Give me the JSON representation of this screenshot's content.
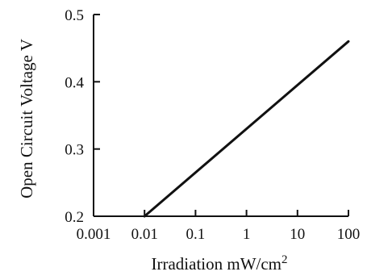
{
  "chart_data": {
    "type": "line",
    "title": "",
    "xlabel": "Irradiation  mW/cm",
    "xlabel_superscript": "2",
    "ylabel": "Open Circuit Voltage  V",
    "x_scale": "log",
    "xlim": [
      0.001,
      100
    ],
    "ylim": [
      0.2,
      0.5
    ],
    "x_ticks": [
      0.001,
      0.01,
      0.1,
      1,
      10,
      100
    ],
    "x_tick_labels": [
      "0.001",
      "0.01",
      "0.1",
      "1",
      "10",
      "100"
    ],
    "y_ticks": [
      0.2,
      0.3,
      0.4,
      0.5
    ],
    "y_tick_labels": [
      "0.2",
      "0.3",
      "0.4",
      "0.5"
    ],
    "grid": false,
    "series": [
      {
        "x": [
          0.01,
          100
        ],
        "y": [
          0.2,
          0.46
        ]
      }
    ]
  }
}
